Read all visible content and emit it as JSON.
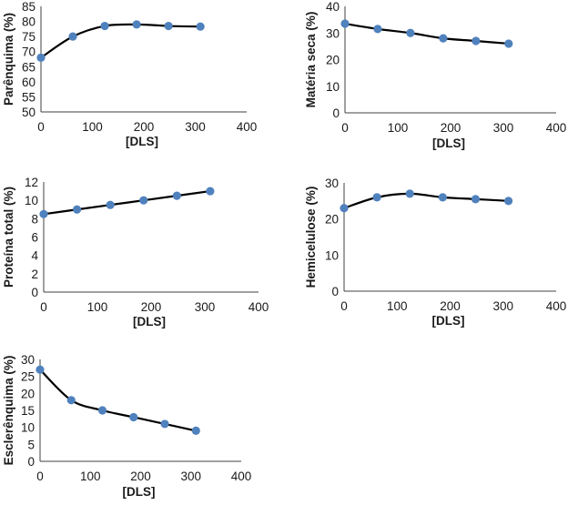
{
  "chart_data": [
    {
      "type": "line",
      "title": "",
      "xlabel": "[DLS]",
      "ylabel": "Parênquima (%)",
      "xlim": [
        0,
        400
      ],
      "ylim": [
        50,
        85
      ],
      "xticks": [
        0,
        100,
        200,
        300,
        400
      ],
      "yticks": [
        50,
        55,
        60,
        65,
        70,
        75,
        80,
        85
      ],
      "grid": false,
      "legend": "none",
      "smooth": true,
      "x": [
        0,
        62,
        124,
        186,
        248,
        310
      ],
      "values": [
        68,
        75,
        78.5,
        79,
        78.5,
        78.3
      ]
    },
    {
      "type": "line",
      "title": "",
      "xlabel": "[DLS]",
      "ylabel": "Matéria seca (%)",
      "xlim": [
        0,
        400
      ],
      "ylim": [
        0,
        40
      ],
      "xticks": [
        0,
        100,
        200,
        300,
        400
      ],
      "yticks": [
        0,
        10,
        20,
        30,
        40
      ],
      "grid": false,
      "legend": "none",
      "smooth": true,
      "x": [
        0,
        62,
        124,
        186,
        248,
        310
      ],
      "values": [
        33.5,
        31.5,
        30,
        28,
        27,
        26
      ]
    },
    {
      "type": "line",
      "title": "",
      "xlabel": "[DLS]",
      "ylabel": "Proteína total (%)",
      "xlim": [
        0,
        400
      ],
      "ylim": [
        0,
        12
      ],
      "xticks": [
        0,
        100,
        200,
        300,
        400
      ],
      "yticks": [
        0,
        2,
        4,
        6,
        8,
        10,
        12
      ],
      "grid": false,
      "legend": "none",
      "smooth": true,
      "x": [
        0,
        62,
        124,
        186,
        248,
        310
      ],
      "values": [
        8.5,
        9,
        9.5,
        10,
        10.5,
        11
      ]
    },
    {
      "type": "line",
      "title": "",
      "xlabel": "[DLS]",
      "ylabel": "Hemicelulose (%)",
      "xlim": [
        0,
        400
      ],
      "ylim": [
        0,
        30
      ],
      "xticks": [
        0,
        100,
        200,
        300,
        400
      ],
      "yticks": [
        0,
        10,
        20,
        30
      ],
      "grid": false,
      "legend": "none",
      "smooth": true,
      "x": [
        0,
        62,
        124,
        186,
        248,
        310
      ],
      "values": [
        23,
        26,
        27,
        26,
        25.5,
        25
      ]
    },
    {
      "type": "line",
      "title": "",
      "xlabel": "[DLS]",
      "ylabel": "Esclerênquima (%)",
      "xlim": [
        0,
        400
      ],
      "ylim": [
        0,
        30
      ],
      "xticks": [
        0,
        100,
        200,
        300,
        400
      ],
      "yticks": [
        0,
        5,
        10,
        15,
        20,
        25,
        30
      ],
      "grid": false,
      "legend": "none",
      "smooth": true,
      "x": [
        0,
        62,
        124,
        186,
        248,
        310
      ],
      "values": [
        27,
        18,
        15,
        13,
        11,
        9
      ]
    }
  ],
  "colors": {
    "marker": "#4f81bd",
    "line": "#000000",
    "axis": "#404040"
  }
}
